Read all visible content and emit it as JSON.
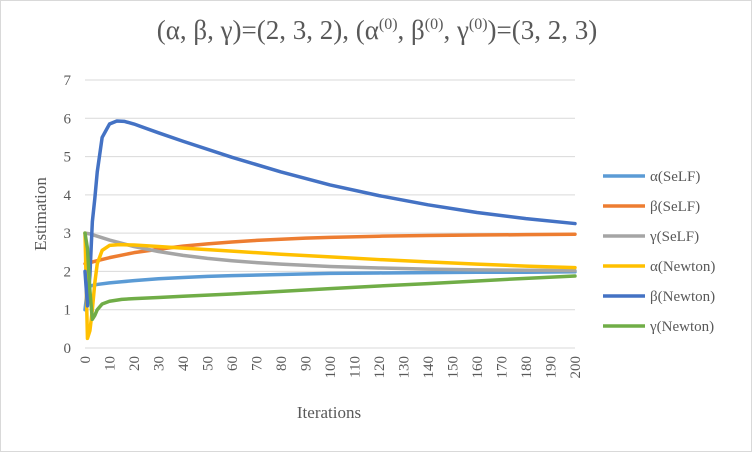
{
  "chart_data": {
    "type": "line",
    "title": {
      "part1": "(α, β, γ)=(2, 3, 2), (α",
      "sup1": "(0)",
      "part2": ", β",
      "sup2": "(0)",
      "part3": ", γ",
      "sup3": "(0)",
      "part4": ")=(3, 2, 3)"
    },
    "xlabel": "Iterations",
    "ylabel": "Estimation",
    "xlim": [
      0,
      200
    ],
    "ylim": [
      0,
      7
    ],
    "xticks": [
      "0",
      "10",
      "20",
      "30",
      "40",
      "50",
      "60",
      "70",
      "80",
      "90",
      "100",
      "110",
      "120",
      "130",
      "140",
      "150",
      "160",
      "170",
      "180",
      "190",
      "200"
    ],
    "yticks": [
      "0",
      "1",
      "2",
      "3",
      "4",
      "5",
      "6",
      "7"
    ],
    "grid": true,
    "legend_position": "right",
    "series": [
      {
        "name": "α(SeLF)",
        "color": "#5b9bd5",
        "x": [
          0,
          1,
          2,
          5,
          10,
          15,
          20,
          30,
          40,
          50,
          60,
          80,
          100,
          120,
          140,
          160,
          180,
          200
        ],
        "y": [
          1.0,
          1.55,
          1.62,
          1.66,
          1.7,
          1.73,
          1.76,
          1.81,
          1.84,
          1.87,
          1.89,
          1.92,
          1.95,
          1.96,
          1.97,
          1.98,
          1.98,
          1.99
        ]
      },
      {
        "name": "β(SeLF)",
        "color": "#ed7d31",
        "x": [
          0,
          2,
          5,
          10,
          20,
          30,
          40,
          50,
          60,
          70,
          80,
          90,
          100,
          120,
          140,
          160,
          180,
          200
        ],
        "y": [
          2.2,
          2.23,
          2.28,
          2.36,
          2.49,
          2.58,
          2.66,
          2.72,
          2.77,
          2.81,
          2.84,
          2.87,
          2.89,
          2.92,
          2.94,
          2.95,
          2.96,
          2.97
        ]
      },
      {
        "name": "γ(SeLF)",
        "color": "#a5a5a5",
        "x": [
          0,
          2,
          5,
          10,
          20,
          30,
          40,
          50,
          60,
          70,
          80,
          100,
          120,
          140,
          160,
          180,
          200
        ],
        "y": [
          3.0,
          2.98,
          2.92,
          2.82,
          2.65,
          2.52,
          2.42,
          2.34,
          2.28,
          2.23,
          2.19,
          2.13,
          2.09,
          2.06,
          2.04,
          2.03,
          2.02
        ]
      },
      {
        "name": "α(Newton)",
        "color": "#ffc000",
        "x": [
          0,
          1,
          2,
          3,
          4,
          5,
          7,
          10,
          14,
          20,
          30,
          40,
          60,
          80,
          100,
          120,
          140,
          160,
          180,
          200
        ],
        "y": [
          3.0,
          0.25,
          0.45,
          1.0,
          1.7,
          2.2,
          2.55,
          2.68,
          2.7,
          2.69,
          2.65,
          2.61,
          2.53,
          2.45,
          2.38,
          2.31,
          2.25,
          2.19,
          2.14,
          2.1
        ]
      },
      {
        "name": "β(Newton)",
        "color": "#4472c4",
        "x": [
          0,
          1,
          2,
          3,
          4,
          5,
          7,
          10,
          13,
          16,
          20,
          30,
          40,
          60,
          80,
          100,
          120,
          140,
          160,
          180,
          200
        ],
        "y": [
          2.0,
          1.1,
          1.9,
          3.3,
          3.9,
          4.6,
          5.5,
          5.85,
          5.93,
          5.92,
          5.85,
          5.62,
          5.4,
          4.98,
          4.6,
          4.26,
          3.98,
          3.74,
          3.54,
          3.38,
          3.25
        ]
      },
      {
        "name": "γ(Newton)",
        "color": "#70ad47",
        "x": [
          0,
          1,
          2,
          3,
          4,
          5,
          7,
          10,
          15,
          20,
          30,
          40,
          60,
          80,
          100,
          120,
          140,
          160,
          180,
          200
        ],
        "y": [
          3.0,
          2.6,
          1.5,
          0.75,
          0.85,
          1.0,
          1.15,
          1.22,
          1.27,
          1.29,
          1.32,
          1.35,
          1.41,
          1.48,
          1.55,
          1.62,
          1.68,
          1.75,
          1.82,
          1.88
        ]
      }
    ]
  }
}
